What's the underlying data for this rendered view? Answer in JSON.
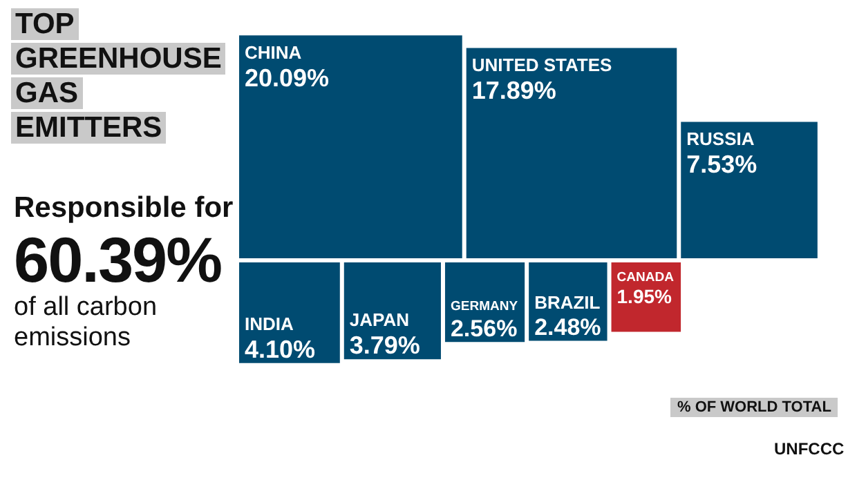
{
  "chart_data": {
    "type": "other",
    "title": "TOP GREENHOUSE GAS EMITTERS",
    "subtitle": "Responsible for",
    "categories": [
      "CHINA",
      "UNITED STATES",
      "RUSSIA",
      "INDIA",
      "JAPAN",
      "GERMANY",
      "BRAZIL",
      "CANADA"
    ],
    "values": [
      20.09,
      17.89,
      7.53,
      4.1,
      3.79,
      2.56,
      2.48,
      1.95
    ],
    "value_labels": [
      "20.09%",
      "17.89%",
      "7.53%",
      "4.10%",
      "3.79%",
      "2.56%",
      "2.48%",
      "1.95%"
    ],
    "colors": [
      "#004b71",
      "#004b71",
      "#004b71",
      "#004b71",
      "#004b71",
      "#004b71",
      "#004b71",
      "#c1272d"
    ],
    "annotations": [
      "60.39%",
      "of all carbon emissions",
      "% OF WORLD TOTAL",
      "UNFCCC"
    ]
  }
}
